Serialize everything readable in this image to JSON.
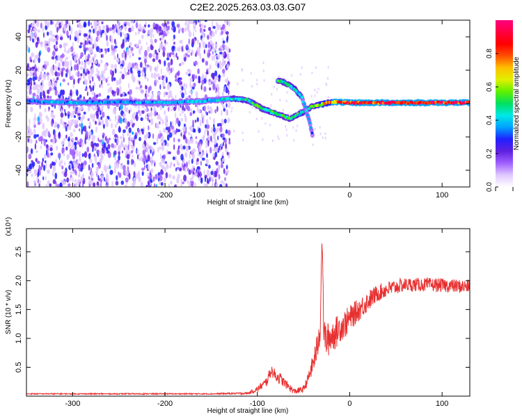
{
  "figure_title": "C2E2.2025.263.03.03.G07",
  "chart_data": [
    {
      "type": "heatmap",
      "name": "spectrogram",
      "xlabel": "Height of straight line (km)",
      "ylabel": "Frequency (Hz)",
      "xlim": [
        -350,
        130
      ],
      "ylim": [
        -50,
        50
      ],
      "x_ticks": [
        -300,
        -200,
        -100,
        0,
        100
      ],
      "y_ticks": [
        -40,
        -20,
        0,
        20,
        40
      ],
      "colorbar": {
        "label": "Normalized spectral amplitude",
        "range": [
          0,
          1
        ],
        "ticks": [
          "0.0",
          "0.2",
          "0.4",
          "0.6",
          "0.8"
        ],
        "tick_values": [
          0,
          0.2,
          0.4,
          0.6,
          0.8
        ],
        "colors": [
          "#ffffff",
          "#e0c8ff",
          "#a060ff",
          "#6020e0",
          "#2020ff",
          "#00a0ff",
          "#00e8e8",
          "#00e060",
          "#60f000",
          "#e0f000",
          "#ffc000",
          "#ff5000",
          "#ff0000",
          "#ff0040",
          "#ff0080"
        ]
      },
      "noise_region": {
        "x_range": [
          -350,
          -130
        ],
        "freq_spread": 50
      },
      "main_track": [
        {
          "x": -350,
          "f": 1.5,
          "amp": 0.35
        },
        {
          "x": -300,
          "f": 0.5,
          "amp": 0.4
        },
        {
          "x": -250,
          "f": 1.0,
          "amp": 0.38
        },
        {
          "x": -200,
          "f": 0.5,
          "amp": 0.4
        },
        {
          "x": -160,
          "f": 1.5,
          "amp": 0.42
        },
        {
          "x": -125,
          "f": 3.0,
          "amp": 0.45
        },
        {
          "x": -110,
          "f": 2.0,
          "amp": 0.5
        },
        {
          "x": -95,
          "f": -3.0,
          "amp": 0.55
        },
        {
          "x": -80,
          "f": -6.0,
          "amp": 0.55
        },
        {
          "x": -65,
          "f": -9.0,
          "amp": 0.5
        },
        {
          "x": -50,
          "f": -5.0,
          "amp": 0.5
        },
        {
          "x": -40,
          "f": -1.5,
          "amp": 0.55
        },
        {
          "x": -30,
          "f": -0.5,
          "amp": 0.7
        },
        {
          "x": -20,
          "f": 1.0,
          "amp": 0.8
        },
        {
          "x": 0,
          "f": 0.5,
          "amp": 0.9
        },
        {
          "x": 50,
          "f": 0.5,
          "amp": 0.95
        },
        {
          "x": 130,
          "f": 0.5,
          "amp": 0.95
        }
      ],
      "upper_branch": [
        {
          "x": -78,
          "f": 14.0,
          "amp": 0.5
        },
        {
          "x": -70,
          "f": 12.5,
          "amp": 0.5
        },
        {
          "x": -60,
          "f": 9.0,
          "amp": 0.45
        },
        {
          "x": -52,
          "f": 4.0,
          "amp": 0.45
        },
        {
          "x": -47,
          "f": -4.0,
          "amp": 0.4
        },
        {
          "x": -43,
          "f": -12.0,
          "amp": 0.35
        },
        {
          "x": -40,
          "f": -20.0,
          "amp": 0.3
        }
      ]
    },
    {
      "type": "line",
      "name": "snr",
      "xlabel": "Height of straight line (km)",
      "ylabel": "SNR (10 * v/v)",
      "scale_label": "(x10⁴)",
      "xlim": [
        -350,
        130
      ],
      "ylim": [
        0,
        2.9
      ],
      "x_ticks": [
        -300,
        -200,
        -100,
        0,
        100
      ],
      "y_ticks": [
        "0.5",
        "1.0",
        "1.5",
        "2.0",
        "2.5"
      ],
      "y_tick_values": [
        0.5,
        1.0,
        1.5,
        2.0,
        2.5
      ],
      "color": "#e83030",
      "series": [
        {
          "name": "SNR",
          "x": [
            -350,
            -300,
            -250,
            -200,
            -150,
            -110,
            -100,
            -90,
            -85,
            -80,
            -75,
            -70,
            -60,
            -50,
            -45,
            -40,
            -35,
            -32,
            -30,
            -28,
            -25,
            -20,
            -15,
            -10,
            -5,
            0,
            10,
            20,
            30,
            40,
            60,
            80,
            100,
            120,
            130
          ],
          "y": [
            0.04,
            0.04,
            0.04,
            0.04,
            0.04,
            0.05,
            0.12,
            0.25,
            0.45,
            0.35,
            0.3,
            0.22,
            0.08,
            0.12,
            0.3,
            0.55,
            0.85,
            1.2,
            2.8,
            1.1,
            0.95,
            1.05,
            1.1,
            1.2,
            1.25,
            1.35,
            1.5,
            1.65,
            1.78,
            1.85,
            1.93,
            1.93,
            1.92,
            1.9,
            1.9
          ],
          "noise": [
            0.01,
            0.01,
            0.01,
            0.01,
            0.01,
            0.02,
            0.05,
            0.08,
            0.1,
            0.1,
            0.1,
            0.08,
            0.05,
            0.06,
            0.1,
            0.18,
            0.25,
            0.3,
            0.1,
            0.3,
            0.3,
            0.3,
            0.28,
            0.25,
            0.25,
            0.22,
            0.2,
            0.18,
            0.15,
            0.14,
            0.12,
            0.12,
            0.12,
            0.12,
            0.12
          ]
        }
      ]
    }
  ]
}
